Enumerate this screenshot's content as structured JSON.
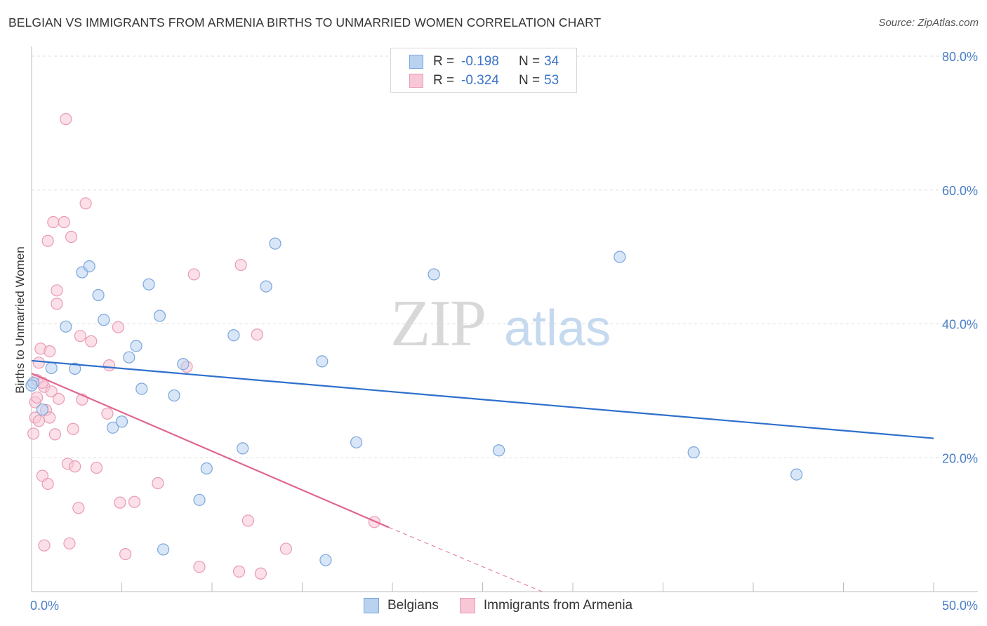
{
  "header": {
    "title": "BELGIAN VS IMMIGRANTS FROM ARMENIA BIRTHS TO UNMARRIED WOMEN CORRELATION CHART",
    "source": "Source: ZipAtlas.com"
  },
  "watermark": {
    "zip": "ZIP",
    "atlas": "atlas"
  },
  "colors": {
    "blue_fill": "#b8d2f0",
    "blue_stroke": "#7aa6dc",
    "blue_line": "#2f6fcc",
    "pink_fill": "#f7c7d6",
    "pink_stroke": "#e99ab4",
    "pink_line": "#e0668f",
    "axis_label": "#4a7fc7"
  },
  "legend": {
    "rows": [
      {
        "label": "R =",
        "r": "-0.198",
        "n_label": "N =",
        "n": "34"
      },
      {
        "label": "R =",
        "r": "-0.324",
        "n_label": "N =",
        "n": "53"
      }
    ]
  },
  "bottom_legend": {
    "belgians": "Belgians",
    "armenia": "Immigrants from Armenia"
  },
  "chart_data": {
    "type": "scatter",
    "title": "BELGIAN VS IMMIGRANTS FROM ARMENIA BIRTHS TO UNMARRIED WOMEN CORRELATION CHART",
    "xlabel": "",
    "ylabel": "Births to Unmarried Women",
    "xlim": [
      0,
      50
    ],
    "ylim": [
      0,
      80
    ],
    "x_tick_labels": [
      "0.0%",
      "50.0%"
    ],
    "y_tick_labels": [
      "20.0%",
      "40.0%",
      "60.0%",
      "80.0%"
    ],
    "y_ticks": [
      20,
      40,
      60,
      80
    ],
    "grid": true,
    "series": [
      {
        "name": "Belgians",
        "r": -0.198,
        "n": 34,
        "trend": {
          "x": [
            0,
            50
          ],
          "y": [
            34.5,
            22.9
          ]
        },
        "points": [
          [
            0.1,
            31.2
          ],
          [
            0.6,
            27.2
          ],
          [
            1.1,
            33.4
          ],
          [
            1.9,
            39.6
          ],
          [
            2.4,
            33.3
          ],
          [
            2.8,
            47.7
          ],
          [
            3.2,
            48.6
          ],
          [
            3.7,
            44.3
          ],
          [
            4.0,
            40.6
          ],
          [
            4.5,
            24.5
          ],
          [
            5.0,
            25.4
          ],
          [
            5.4,
            35.0
          ],
          [
            5.8,
            36.7
          ],
          [
            6.1,
            30.3
          ],
          [
            6.5,
            45.9
          ],
          [
            7.1,
            41.2
          ],
          [
            7.3,
            6.3
          ],
          [
            7.9,
            29.3
          ],
          [
            8.4,
            34.0
          ],
          [
            9.3,
            13.7
          ],
          [
            9.7,
            18.4
          ],
          [
            11.2,
            38.3
          ],
          [
            11.7,
            21.4
          ],
          [
            13.0,
            45.6
          ],
          [
            13.5,
            52.0
          ],
          [
            16.1,
            34.4
          ],
          [
            16.3,
            4.7
          ],
          [
            18.0,
            22.3
          ],
          [
            22.3,
            47.4
          ],
          [
            25.9,
            21.1
          ],
          [
            32.6,
            50.0
          ],
          [
            36.7,
            20.8
          ],
          [
            42.4,
            17.5
          ],
          [
            0.0,
            30.8
          ]
        ]
      },
      {
        "name": "Immigrants from Armenia",
        "r": -0.324,
        "n": 53,
        "trend": {
          "x": [
            0,
            19.8
          ],
          "y": [
            32.6,
            9.6
          ]
        },
        "trend_dashed": {
          "x": [
            19.8,
            28.3
          ],
          "y": [
            9.6,
            0.0
          ]
        },
        "points": [
          [
            0.1,
            23.6
          ],
          [
            0.2,
            26.0
          ],
          [
            0.2,
            28.3
          ],
          [
            0.3,
            31.6
          ],
          [
            0.4,
            34.2
          ],
          [
            0.4,
            25.5
          ],
          [
            0.5,
            36.3
          ],
          [
            0.6,
            17.3
          ],
          [
            0.7,
            30.6
          ],
          [
            0.7,
            6.9
          ],
          [
            0.8,
            27.1
          ],
          [
            0.9,
            16.1
          ],
          [
            0.9,
            52.4
          ],
          [
            1.0,
            35.9
          ],
          [
            1.0,
            26.0
          ],
          [
            1.1,
            29.9
          ],
          [
            1.2,
            55.2
          ],
          [
            1.3,
            23.5
          ],
          [
            1.4,
            43.0
          ],
          [
            1.4,
            45.0
          ],
          [
            1.8,
            55.2
          ],
          [
            1.9,
            70.6
          ],
          [
            2.0,
            19.1
          ],
          [
            2.1,
            7.2
          ],
          [
            2.2,
            53.0
          ],
          [
            2.3,
            24.3
          ],
          [
            2.4,
            18.7
          ],
          [
            2.6,
            12.5
          ],
          [
            2.7,
            38.2
          ],
          [
            2.8,
            28.7
          ],
          [
            3.0,
            58.0
          ],
          [
            3.3,
            37.4
          ],
          [
            3.6,
            18.5
          ],
          [
            4.2,
            26.6
          ],
          [
            4.3,
            33.8
          ],
          [
            4.8,
            39.5
          ],
          [
            4.9,
            13.3
          ],
          [
            5.2,
            5.6
          ],
          [
            5.7,
            13.4
          ],
          [
            7.0,
            16.2
          ],
          [
            8.6,
            33.6
          ],
          [
            9.0,
            47.4
          ],
          [
            9.3,
            3.7
          ],
          [
            11.5,
            3.0
          ],
          [
            11.6,
            48.8
          ],
          [
            12.0,
            10.6
          ],
          [
            12.5,
            38.4
          ],
          [
            12.7,
            2.7
          ],
          [
            14.1,
            6.4
          ],
          [
            19.0,
            10.4
          ],
          [
            0.3,
            29.0
          ],
          [
            0.6,
            31.2
          ],
          [
            1.5,
            28.8
          ]
        ]
      }
    ]
  }
}
